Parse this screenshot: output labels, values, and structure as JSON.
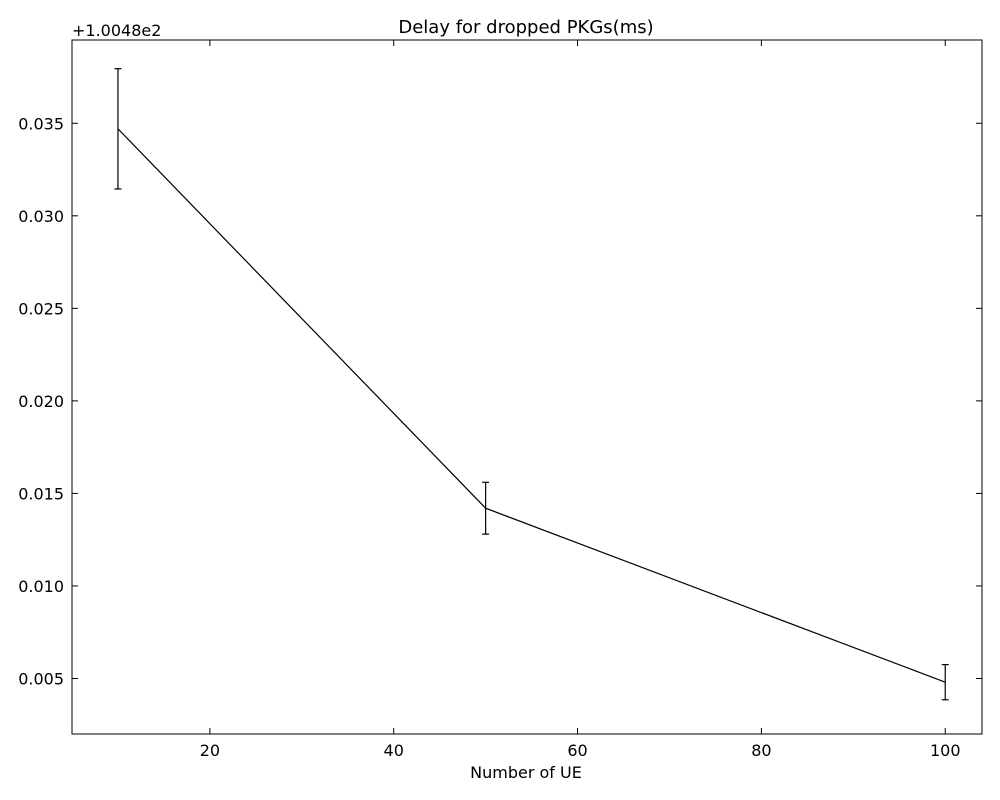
{
  "chart_data": {
    "type": "line",
    "title": "Delay for dropped PKGs(ms)",
    "xlabel": "Number of UE",
    "ylabel": "",
    "y_offset_label": "+1.0048e2",
    "xlim": [
      5,
      104
    ],
    "ylim": [
      0.002,
      0.0395
    ],
    "x_ticks": [
      20,
      40,
      60,
      80,
      100
    ],
    "y_ticks": [
      0.005,
      0.01,
      0.015,
      0.02,
      0.025,
      0.03,
      0.035
    ],
    "y_tick_labels": [
      "0.005",
      "0.010",
      "0.015",
      "0.020",
      "0.025",
      "0.030",
      "0.035"
    ],
    "grid": false,
    "series": [
      {
        "x": [
          10,
          50,
          100
        ],
        "y": [
          0.0347,
          0.0142,
          0.0048
        ],
        "yerr": [
          0.00325,
          0.0014,
          0.00095
        ],
        "color": "#000000"
      }
    ]
  }
}
